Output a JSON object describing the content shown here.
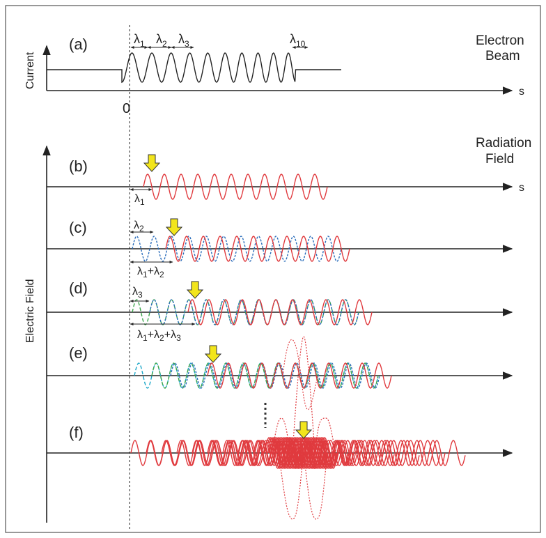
{
  "panels": {
    "a": "(a)",
    "b": "(b)",
    "c": "(c)",
    "d": "(d)",
    "e": "(e)",
    "f": "(f)"
  },
  "labels": {
    "electron_beam_line1": "Electron",
    "electron_beam_line2": "Beam",
    "radiation_field_line1": "Radiation",
    "radiation_field_line2": "Field",
    "current": "Current",
    "electric_field": "Electric Field",
    "s": "s",
    "zero": "0",
    "lambda": "λ",
    "plus": "+",
    "sub1": "1",
    "sub2": "2",
    "sub3": "3",
    "sub10": "10"
  },
  "colors": {
    "beam": "#222222",
    "radiation": "#e03a3e",
    "slippage_blue": "#2a6dbb",
    "slippage_green": "#3aa64a",
    "slippage_cyan": "#1aa6c8",
    "marker_arrow": "#f2e51c",
    "frame": "#555555"
  },
  "icons": {
    "marker": "down-arrow-icon"
  }
}
